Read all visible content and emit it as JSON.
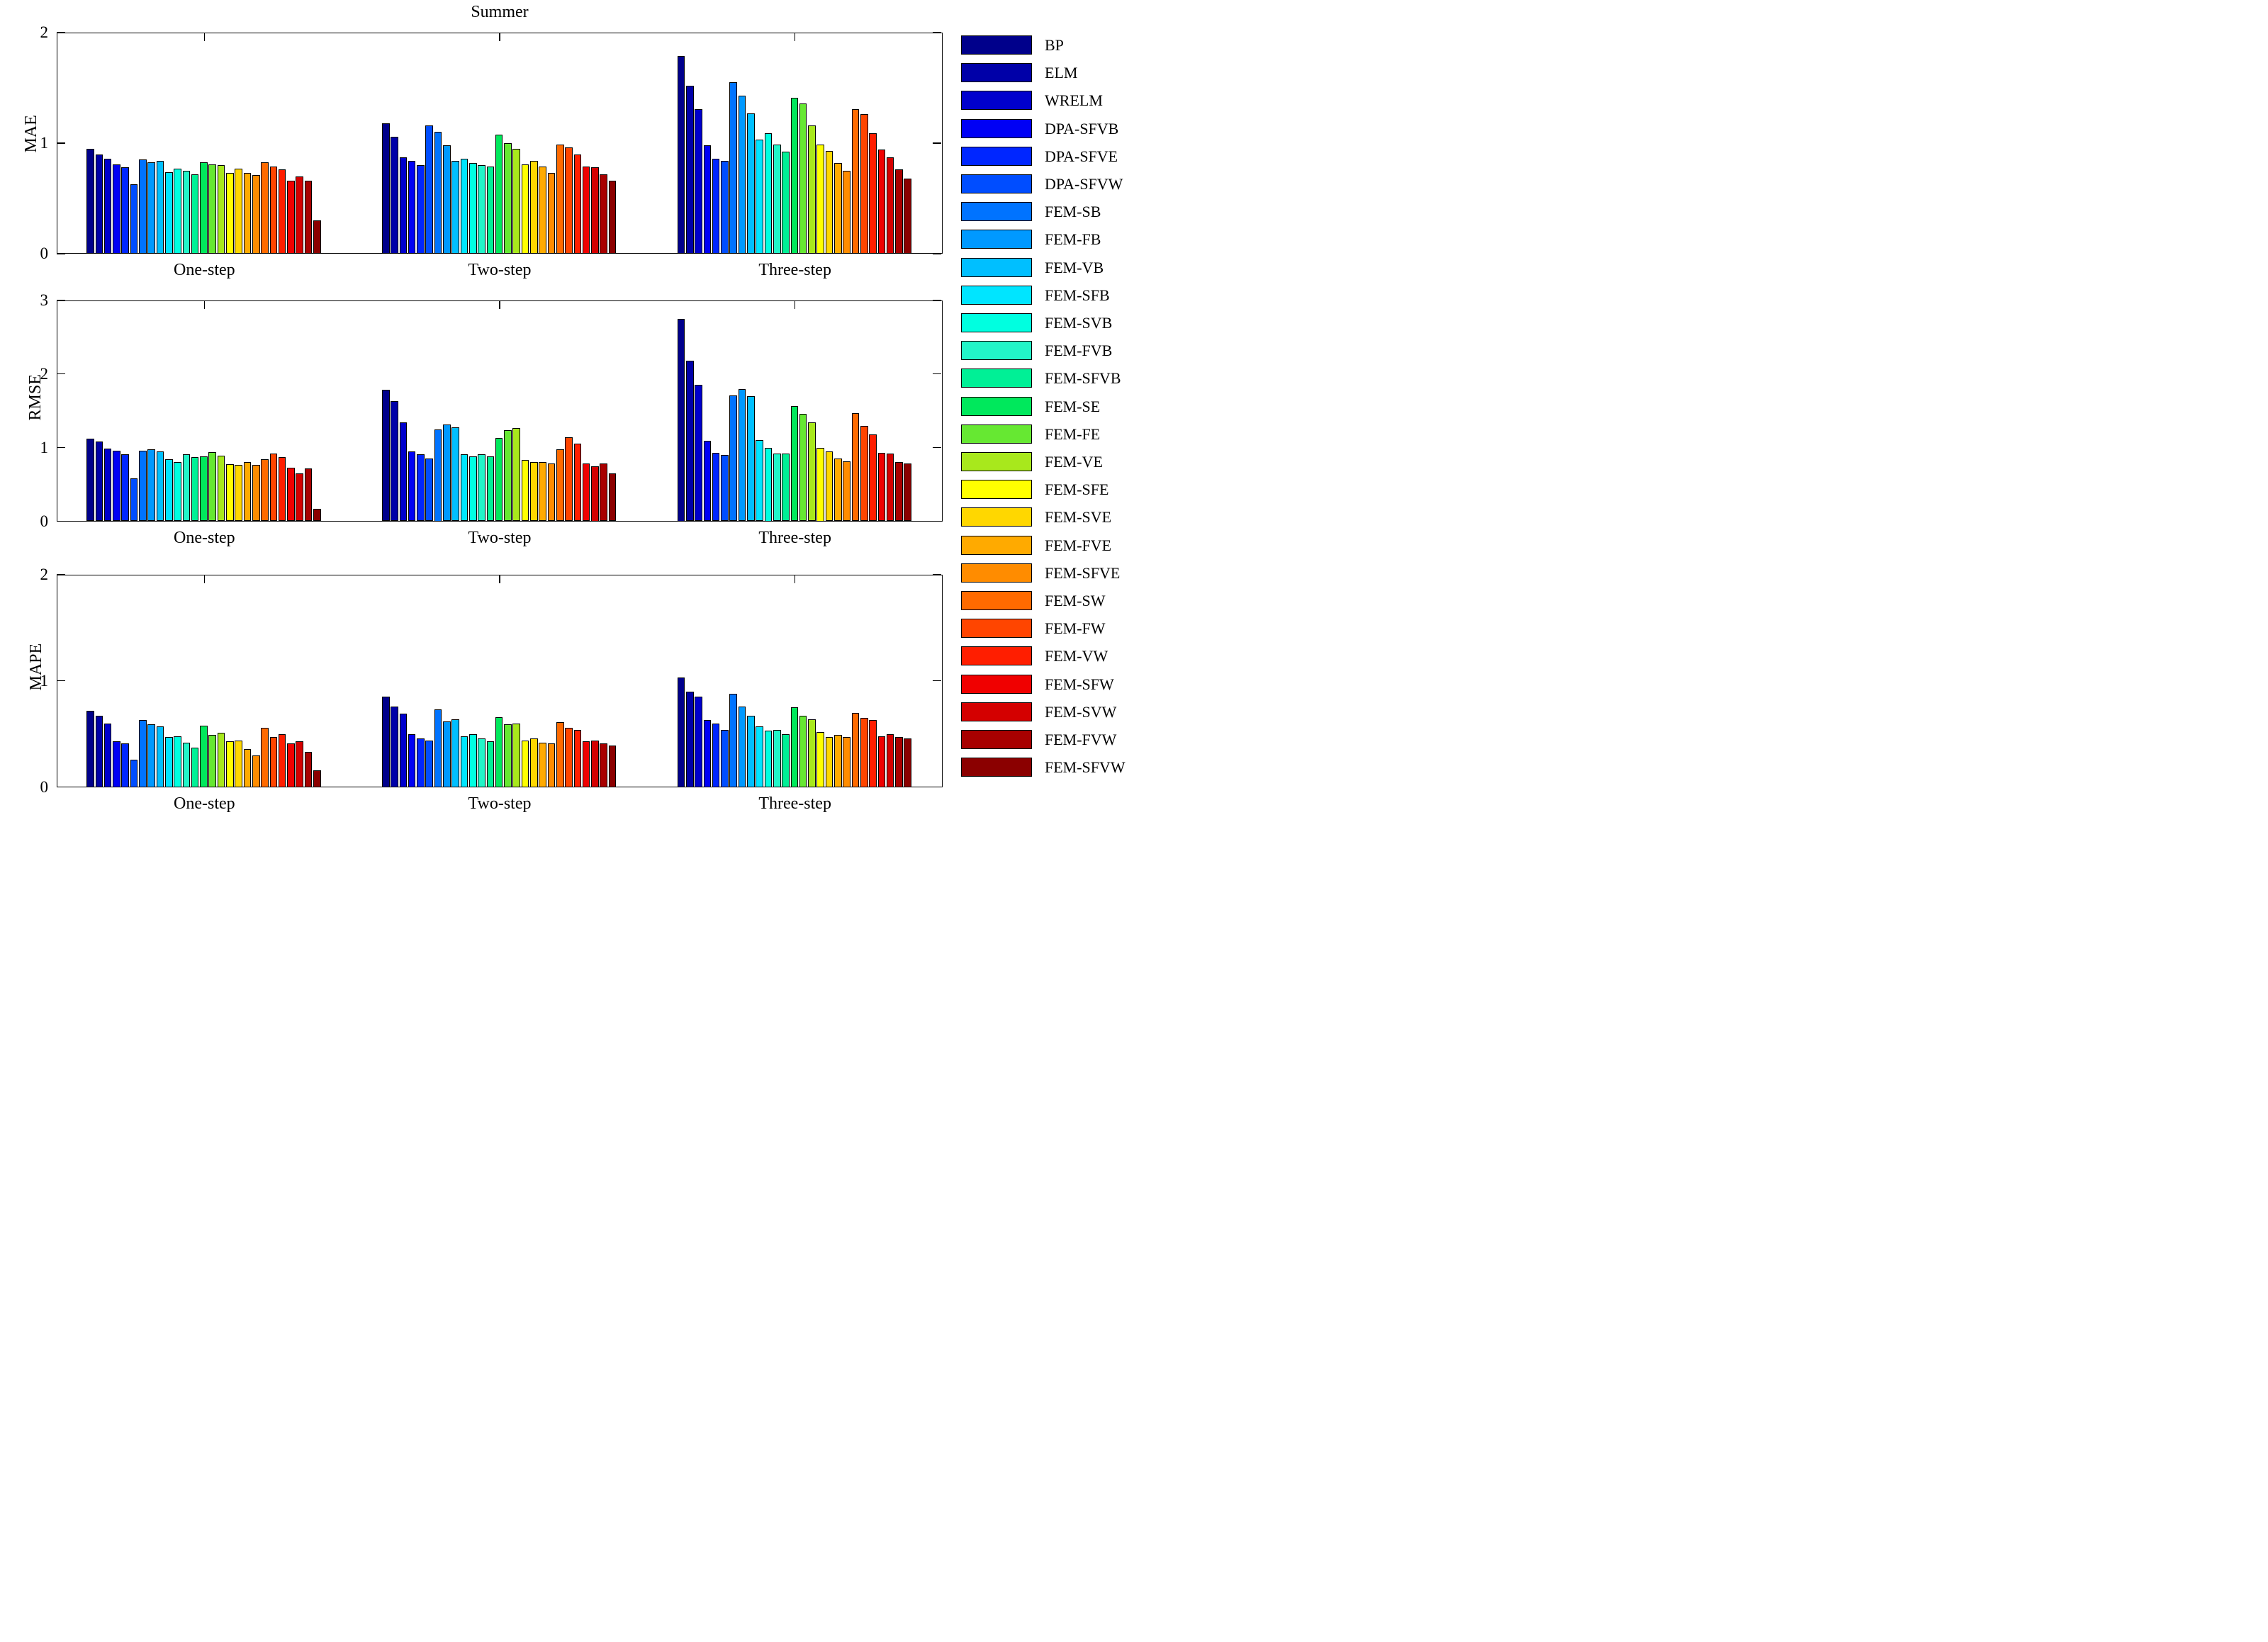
{
  "figure_title": "Summer",
  "legend": {
    "methods": [
      "BP",
      "ELM",
      "WRELM",
      "DPA-SFVB",
      "DPA-SFVE",
      "DPA-SFVW",
      "FEM-SB",
      "FEM-FB",
      "FEM-VB",
      "FEM-SFB",
      "FEM-SVB",
      "FEM-FVB",
      "FEM-SFVB",
      "FEM-SE",
      "FEM-FE",
      "FEM-VE",
      "FEM-SFE",
      "FEM-SVE",
      "FEM-FVE",
      "FEM-SFVE",
      "FEM-SW",
      "FEM-FW",
      "FEM-VW",
      "FEM-SFW",
      "FEM-SVW",
      "FEM-FVW",
      "FEM-SFVW"
    ],
    "colors": [
      "#00008B",
      "#0000A8",
      "#0000CD",
      "#0000F5",
      "#0026FF",
      "#004DFF",
      "#0073FF",
      "#0099FF",
      "#00BFFF",
      "#00E5FF",
      "#00FFE0",
      "#22F5C8",
      "#00F096",
      "#00E85C",
      "#66E832",
      "#A8E81C",
      "#FFFF00",
      "#FFD700",
      "#FFAA00",
      "#FF8C00",
      "#FF6A00",
      "#FF4500",
      "#FF1E00",
      "#F00000",
      "#D40000",
      "#A80000",
      "#8B0000"
    ]
  },
  "chart_data": [
    {
      "type": "bar",
      "title": "Summer",
      "ylabel": "MAE",
      "ylim": [
        0,
        2
      ],
      "yticks": [
        0,
        1,
        2
      ],
      "grid": false,
      "legend_position": "right-outside",
      "categories": [
        "One-step",
        "Two-step",
        "Three-step"
      ],
      "series": [
        {
          "name": "BP",
          "values": [
            0.95,
            1.18,
            1.79
          ]
        },
        {
          "name": "ELM",
          "values": [
            0.9,
            1.06,
            1.52
          ]
        },
        {
          "name": "WRELM",
          "values": [
            0.86,
            0.87,
            1.31
          ]
        },
        {
          "name": "DPA-SFVB",
          "values": [
            0.81,
            0.84,
            0.98
          ]
        },
        {
          "name": "DPA-SFVE",
          "values": [
            0.78,
            0.8,
            0.86
          ]
        },
        {
          "name": "DPA-SFVW",
          "values": [
            0.63,
            1.16,
            0.84
          ]
        },
        {
          "name": "FEM-SB",
          "values": [
            0.85,
            1.1,
            1.55
          ]
        },
        {
          "name": "FEM-FB",
          "values": [
            0.83,
            0.98,
            1.43
          ]
        },
        {
          "name": "FEM-VB",
          "values": [
            0.84,
            0.84,
            1.27
          ]
        },
        {
          "name": "FEM-SFB",
          "values": [
            0.74,
            0.86,
            1.03
          ]
        },
        {
          "name": "FEM-SVB",
          "values": [
            0.77,
            0.82,
            1.09
          ]
        },
        {
          "name": "FEM-FVB",
          "values": [
            0.75,
            0.8,
            0.99
          ]
        },
        {
          "name": "FEM-SFVB",
          "values": [
            0.72,
            0.79,
            0.92
          ]
        },
        {
          "name": "FEM-SE",
          "values": [
            0.83,
            1.08,
            1.41
          ]
        },
        {
          "name": "FEM-FE",
          "values": [
            0.81,
            1.0,
            1.36
          ]
        },
        {
          "name": "FEM-VE",
          "values": [
            0.8,
            0.95,
            1.16
          ]
        },
        {
          "name": "FEM-SFE",
          "values": [
            0.73,
            0.81,
            0.99
          ]
        },
        {
          "name": "FEM-SVE",
          "values": [
            0.77,
            0.84,
            0.93
          ]
        },
        {
          "name": "FEM-FVE",
          "values": [
            0.73,
            0.79,
            0.82
          ]
        },
        {
          "name": "FEM-SFVE",
          "values": [
            0.71,
            0.73,
            0.75
          ]
        },
        {
          "name": "FEM-SW",
          "values": [
            0.83,
            0.99,
            1.31
          ]
        },
        {
          "name": "FEM-FW",
          "values": [
            0.79,
            0.96,
            1.26
          ]
        },
        {
          "name": "FEM-VW",
          "values": [
            0.76,
            0.9,
            1.09
          ]
        },
        {
          "name": "FEM-SFW",
          "values": [
            0.66,
            0.79,
            0.94
          ]
        },
        {
          "name": "FEM-SVW",
          "values": [
            0.7,
            0.78,
            0.87
          ]
        },
        {
          "name": "FEM-FVW",
          "values": [
            0.66,
            0.72,
            0.76
          ]
        },
        {
          "name": "FEM-SFVW",
          "values": [
            0.3,
            0.66,
            0.68
          ]
        }
      ]
    },
    {
      "type": "bar",
      "title": "",
      "ylabel": "RMSE",
      "ylim": [
        0,
        3
      ],
      "yticks": [
        0,
        1,
        2,
        3
      ],
      "grid": false,
      "legend_position": "right-outside",
      "categories": [
        "One-step",
        "Two-step",
        "Three-step"
      ],
      "series": [
        {
          "name": "BP",
          "values": [
            1.12,
            1.78,
            2.75
          ]
        },
        {
          "name": "ELM",
          "values": [
            1.08,
            1.63,
            2.18
          ]
        },
        {
          "name": "WRELM",
          "values": [
            0.99,
            1.34,
            1.85
          ]
        },
        {
          "name": "DPA-SFVB",
          "values": [
            0.96,
            0.95,
            1.09
          ]
        },
        {
          "name": "DPA-SFVE",
          "values": [
            0.91,
            0.91,
            0.93
          ]
        },
        {
          "name": "DPA-SFVW",
          "values": [
            0.58,
            0.85,
            0.9
          ]
        },
        {
          "name": "FEM-SB",
          "values": [
            0.96,
            1.25,
            1.71
          ]
        },
        {
          "name": "FEM-FB",
          "values": [
            0.98,
            1.31,
            1.79
          ]
        },
        {
          "name": "FEM-VB",
          "values": [
            0.95,
            1.27,
            1.7
          ]
        },
        {
          "name": "FEM-SFB",
          "values": [
            0.84,
            0.91,
            1.1
          ]
        },
        {
          "name": "FEM-SVB",
          "values": [
            0.8,
            0.88,
            1.0
          ]
        },
        {
          "name": "FEM-FVB",
          "values": [
            0.91,
            0.91,
            0.92
          ]
        },
        {
          "name": "FEM-SFVB",
          "values": [
            0.87,
            0.88,
            0.92
          ]
        },
        {
          "name": "FEM-SE",
          "values": [
            0.88,
            1.13,
            1.56
          ]
        },
        {
          "name": "FEM-FE",
          "values": [
            0.94,
            1.24,
            1.46
          ]
        },
        {
          "name": "FEM-VE",
          "values": [
            0.89,
            1.26,
            1.34
          ]
        },
        {
          "name": "FEM-SFE",
          "values": [
            0.77,
            0.83,
            1.0
          ]
        },
        {
          "name": "FEM-SVE",
          "values": [
            0.76,
            0.8,
            0.95
          ]
        },
        {
          "name": "FEM-FVE",
          "values": [
            0.8,
            0.8,
            0.85
          ]
        },
        {
          "name": "FEM-SFVE",
          "values": [
            0.76,
            0.78,
            0.81
          ]
        },
        {
          "name": "FEM-SW",
          "values": [
            0.84,
            0.98,
            1.47
          ]
        },
        {
          "name": "FEM-FW",
          "values": [
            0.92,
            1.14,
            1.29
          ]
        },
        {
          "name": "FEM-VW",
          "values": [
            0.87,
            1.05,
            1.18
          ]
        },
        {
          "name": "FEM-SFW",
          "values": [
            0.73,
            0.78,
            0.93
          ]
        },
        {
          "name": "FEM-SVW",
          "values": [
            0.65,
            0.75,
            0.92
          ]
        },
        {
          "name": "FEM-FVW",
          "values": [
            0.72,
            0.78,
            0.8
          ]
        },
        {
          "name": "FEM-SFVW",
          "values": [
            0.17,
            0.65,
            0.78
          ]
        }
      ]
    },
    {
      "type": "bar",
      "title": "",
      "ylabel": "MAPE",
      "ylim": [
        0,
        2
      ],
      "yticks": [
        0,
        1,
        2
      ],
      "grid": false,
      "legend_position": "right-outside",
      "categories": [
        "One-step",
        "Two-step",
        "Three-step"
      ],
      "series": [
        {
          "name": "BP",
          "values": [
            0.72,
            0.85,
            1.03
          ]
        },
        {
          "name": "ELM",
          "values": [
            0.67,
            0.76,
            0.9
          ]
        },
        {
          "name": "WRELM",
          "values": [
            0.6,
            0.69,
            0.85
          ]
        },
        {
          "name": "DPA-SFVB",
          "values": [
            0.43,
            0.5,
            0.63
          ]
        },
        {
          "name": "DPA-SFVE",
          "values": [
            0.41,
            0.46,
            0.6
          ]
        },
        {
          "name": "DPA-SFVW",
          "values": [
            0.26,
            0.44,
            0.54
          ]
        },
        {
          "name": "FEM-SB",
          "values": [
            0.63,
            0.73,
            0.88
          ]
        },
        {
          "name": "FEM-FB",
          "values": [
            0.59,
            0.62,
            0.76
          ]
        },
        {
          "name": "FEM-VB",
          "values": [
            0.57,
            0.64,
            0.67
          ]
        },
        {
          "name": "FEM-SFB",
          "values": [
            0.47,
            0.48,
            0.57
          ]
        },
        {
          "name": "FEM-SVB",
          "values": [
            0.48,
            0.5,
            0.53
          ]
        },
        {
          "name": "FEM-FVB",
          "values": [
            0.42,
            0.46,
            0.54
          ]
        },
        {
          "name": "FEM-SFVB",
          "values": [
            0.37,
            0.43,
            0.5
          ]
        },
        {
          "name": "FEM-SE",
          "values": [
            0.58,
            0.66,
            0.75
          ]
        },
        {
          "name": "FEM-FE",
          "values": [
            0.49,
            0.59,
            0.67
          ]
        },
        {
          "name": "FEM-VE",
          "values": [
            0.51,
            0.6,
            0.64
          ]
        },
        {
          "name": "FEM-SFE",
          "values": [
            0.43,
            0.44,
            0.52
          ]
        },
        {
          "name": "FEM-SVE",
          "values": [
            0.44,
            0.46,
            0.47
          ]
        },
        {
          "name": "FEM-FVE",
          "values": [
            0.36,
            0.42,
            0.49
          ]
        },
        {
          "name": "FEM-SFVE",
          "values": [
            0.3,
            0.41,
            0.47
          ]
        },
        {
          "name": "FEM-SW",
          "values": [
            0.56,
            0.61,
            0.7
          ]
        },
        {
          "name": "FEM-FW",
          "values": [
            0.47,
            0.56,
            0.65
          ]
        },
        {
          "name": "FEM-VW",
          "values": [
            0.5,
            0.54,
            0.63
          ]
        },
        {
          "name": "FEM-SFW",
          "values": [
            0.41,
            0.43,
            0.48
          ]
        },
        {
          "name": "FEM-SVW",
          "values": [
            0.43,
            0.44,
            0.5
          ]
        },
        {
          "name": "FEM-FVW",
          "values": [
            0.33,
            0.41,
            0.47
          ]
        },
        {
          "name": "FEM-SFVW",
          "values": [
            0.16,
            0.39,
            0.46
          ]
        }
      ]
    }
  ]
}
